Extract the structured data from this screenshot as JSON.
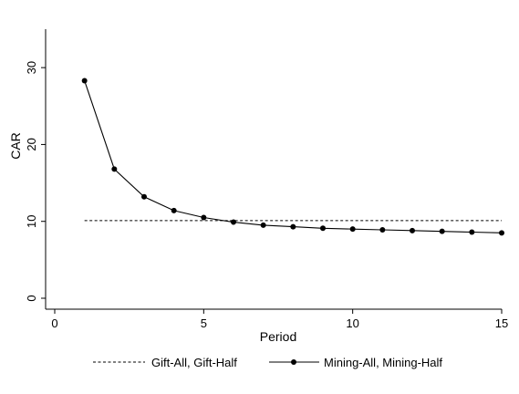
{
  "chart_data": {
    "type": "line",
    "title": "",
    "xlabel": "Period",
    "ylabel": "CAR",
    "xlim": [
      0,
      15
    ],
    "ylim": [
      0,
      35
    ],
    "xticks": [
      0,
      5,
      10,
      15
    ],
    "yticks": [
      0,
      10,
      20,
      30
    ],
    "grid": false,
    "legend_position": "bottom",
    "series": [
      {
        "name": "Gift-All, Gift-Half",
        "style": "dashed",
        "markers": false,
        "color": "#000000",
        "x": [
          1,
          15
        ],
        "y": [
          10.1,
          10.1
        ]
      },
      {
        "name": "Mining-All, Mining-Half",
        "style": "solid",
        "markers": true,
        "color": "#000000",
        "x": [
          1,
          2,
          3,
          4,
          5,
          6,
          7,
          8,
          9,
          10,
          11,
          12,
          13,
          14,
          15
        ],
        "y": [
          28.3,
          16.8,
          13.2,
          11.4,
          10.5,
          9.9,
          9.5,
          9.3,
          9.1,
          9.0,
          8.9,
          8.8,
          8.7,
          8.6,
          8.5
        ]
      }
    ]
  }
}
